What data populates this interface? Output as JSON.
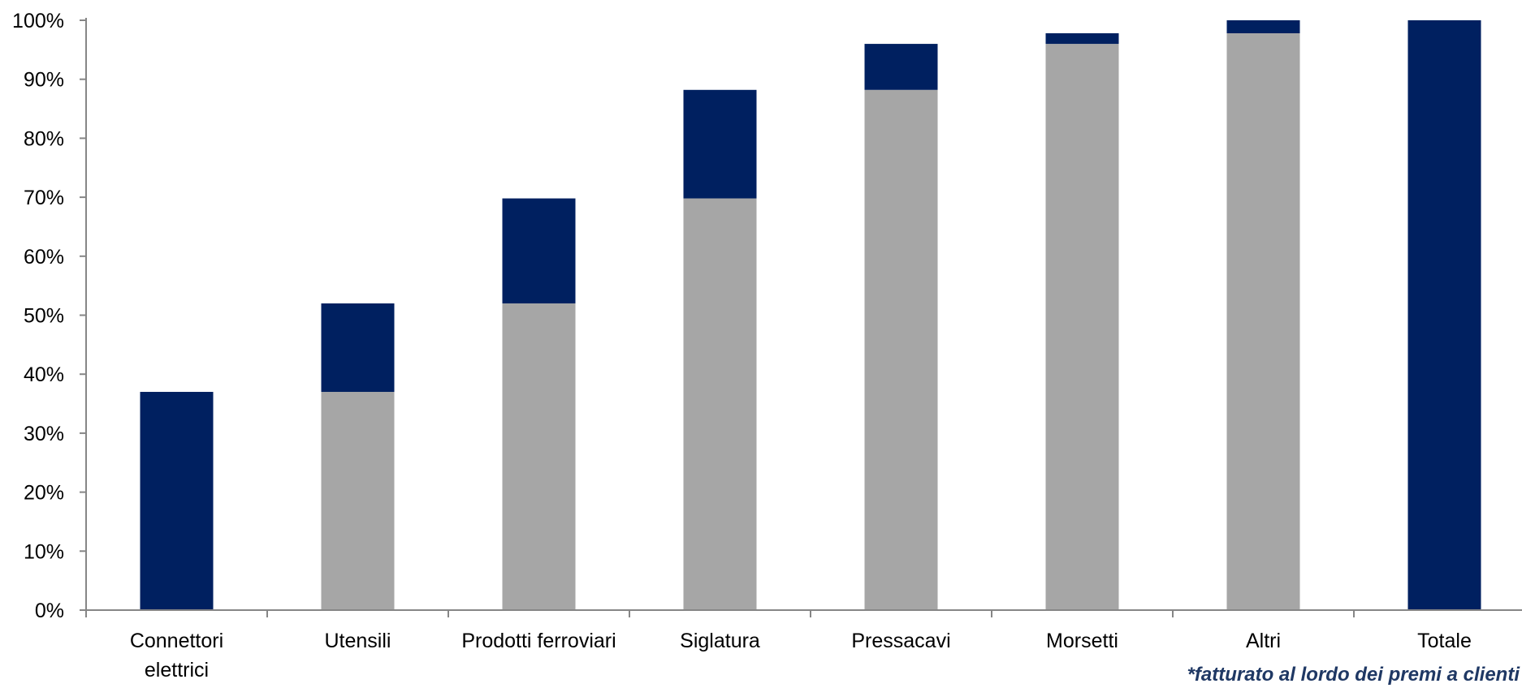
{
  "chart_data": {
    "type": "bar",
    "subtype": "waterfall",
    "categories": [
      "Connettori elettrici",
      "Utensili",
      "Prodotti ferroviari",
      "Siglatura",
      "Pressacavi",
      "Morsetti",
      "Altri",
      "Totale"
    ],
    "category_lines": [
      [
        "Connettori",
        "elettrici"
      ],
      [
        "Utensili"
      ],
      [
        "Prodotti ferroviari"
      ],
      [
        "Siglatura"
      ],
      [
        "Pressacavi"
      ],
      [
        "Morsetti"
      ],
      [
        "Altri"
      ],
      [
        "Totale"
      ]
    ],
    "series": [
      {
        "role": "base",
        "color": "#a6a6a6",
        "values": [
          0,
          37,
          52,
          69.8,
          88.2,
          96,
          97.8,
          0
        ]
      },
      {
        "role": "increment",
        "color": "#002060",
        "values": [
          37,
          15,
          17.8,
          18.4,
          7.8,
          1.8,
          2.2,
          100
        ]
      }
    ],
    "ylim": [
      0,
      100
    ],
    "y_ticks": [
      0,
      10,
      20,
      30,
      40,
      50,
      60,
      70,
      80,
      90,
      100
    ],
    "y_tick_labels": [
      "0%",
      "10%",
      "20%",
      "30%",
      "40%",
      "50%",
      "60%",
      "70%",
      "80%",
      "90%",
      "100%"
    ],
    "grid": false,
    "legend": "none",
    "title": "",
    "xlabel": "",
    "ylabel": ""
  },
  "footnote": "*fatturato al lordo dei premi a clienti"
}
